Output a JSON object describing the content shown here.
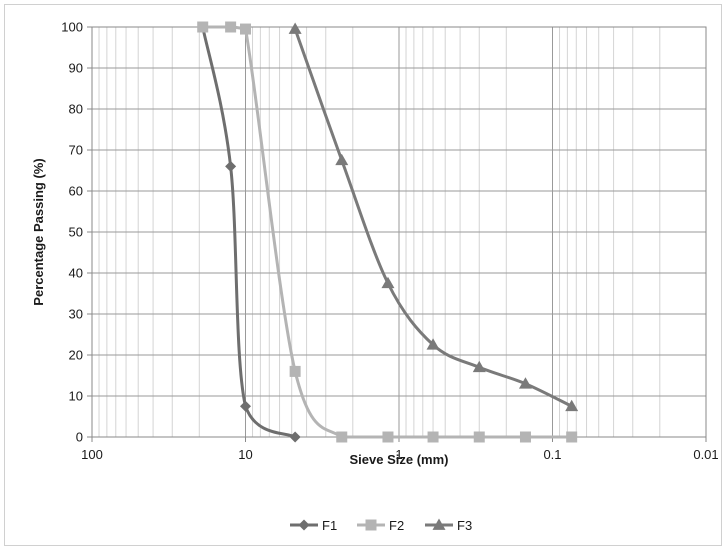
{
  "chart_data": {
    "type": "line",
    "title": "",
    "xlabel": "Sieve Size (mm)",
    "ylabel": "Percentage Passing (%)",
    "x_scale": "log",
    "x_reversed": true,
    "xlim": [
      100,
      0.01
    ],
    "ylim": [
      0,
      100
    ],
    "x_ticks": [
      "100",
      "10",
      "1",
      "0.1",
      "0.01"
    ],
    "y_ticks": [
      "0",
      "10",
      "20",
      "30",
      "40",
      "50",
      "60",
      "70",
      "80",
      "90",
      "100"
    ],
    "grid": true,
    "legend_position": "bottom",
    "series": [
      {
        "name": "F1",
        "marker": "diamond",
        "color": "#6e6e6e",
        "x": [
          19,
          12.5,
          10,
          4.75
        ],
        "y": [
          100,
          66,
          7.5,
          0
        ]
      },
      {
        "name": "F2",
        "marker": "square",
        "color": "#b4b4b4",
        "x": [
          19,
          12.5,
          10,
          4.75,
          2.36,
          1.18,
          0.6,
          0.3,
          0.15,
          0.075
        ],
        "y": [
          100,
          100,
          99.5,
          16,
          0,
          0,
          0,
          0,
          0,
          0
        ]
      },
      {
        "name": "F3",
        "marker": "triangle",
        "color": "#7a7a7a",
        "x": [
          4.75,
          2.36,
          1.18,
          0.6,
          0.3,
          0.15,
          0.075
        ],
        "y": [
          99.5,
          67.5,
          37.5,
          22.5,
          17,
          13,
          7.5
        ]
      }
    ]
  }
}
